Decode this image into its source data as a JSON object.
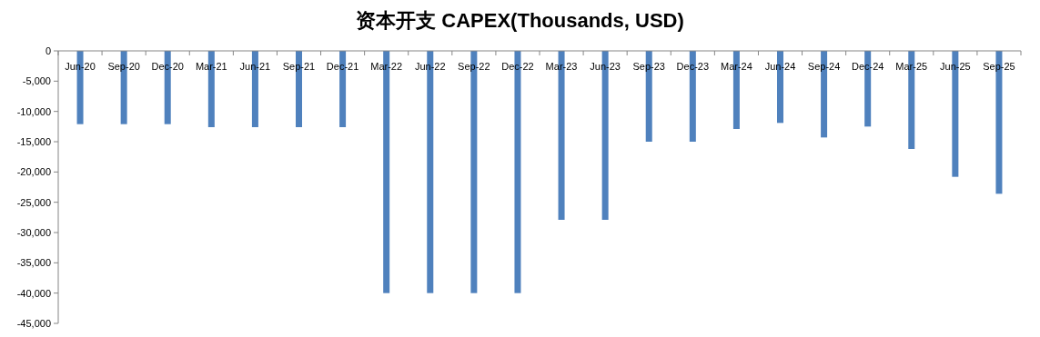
{
  "chart_data": {
    "type": "bar",
    "title": "资本开支 CAPEX(Thousands, USD)",
    "categories": [
      "Jun-20",
      "Sep-20",
      "Dec-20",
      "Mar-21",
      "Jun-21",
      "Sep-21",
      "Dec-21",
      "Mar-22",
      "Jun-22",
      "Sep-22",
      "Dec-22",
      "Mar-23",
      "Jun-23",
      "Sep-23",
      "Dec-23",
      "Mar-24",
      "Jun-24",
      "Sep-24",
      "Dec-24",
      "Mar-25",
      "Jun-25",
      "Sep-25"
    ],
    "values": [
      -12100,
      -12100,
      -12100,
      -12600,
      -12600,
      -12600,
      -12600,
      -40000,
      -40000,
      -40000,
      -40000,
      -27900,
      -27900,
      -15000,
      -15000,
      -12900,
      -11900,
      -14300,
      -12500,
      -16200,
      -20800,
      -23600
    ],
    "color": "#4f81bd",
    "ylim": [
      -45000,
      0
    ],
    "yticks": [
      {
        "value": 0,
        "label": "0"
      },
      {
        "value": -5000,
        "label": "-5,000"
      },
      {
        "value": -10000,
        "label": "-10,000"
      },
      {
        "value": -15000,
        "label": "-15,000"
      },
      {
        "value": -20000,
        "label": "-20,000"
      },
      {
        "value": -25000,
        "label": "-25,000"
      },
      {
        "value": -30000,
        "label": "-30,000"
      },
      {
        "value": -35000,
        "label": "-35,000"
      },
      {
        "value": -40000,
        "label": "-40,000"
      },
      {
        "value": -45000,
        "label": "-45,000"
      }
    ],
    "grid": false
  }
}
